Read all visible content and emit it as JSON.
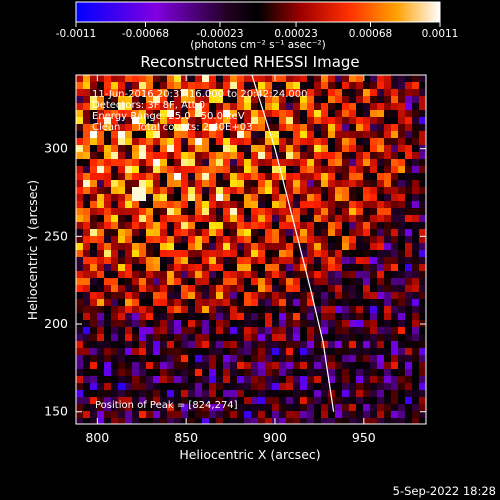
{
  "chart_data": {
    "type": "heatmap",
    "title": "Reconstructed RHESSI Image",
    "xlabel": "Heliocentric X (arcsec)",
    "ylabel": "Heliocentric Y (arcsec)",
    "xlim": [
      788,
      985
    ],
    "ylim": [
      143,
      342
    ],
    "xticks": [
      800,
      850,
      900,
      950
    ],
    "yticks": [
      150,
      200,
      250,
      300
    ],
    "colorbar": {
      "min": -0.0011,
      "max": 0.0011,
      "ticks": [
        -0.0011,
        -0.00068,
        -0.00023,
        0.00023,
        0.00068,
        0.0011
      ],
      "tick_labels": [
        "-0.0011",
        "-0.00068",
        "-0.00023",
        "0.00023",
        "0.00068",
        "0.0011"
      ],
      "unit_label": "(photons cm⁻² s⁻¹ asec⁻²)",
      "colormap": [
        "#0000ff",
        "#7a00e6",
        "#2a0030",
        "#000000",
        "#8a0000",
        "#ff2000",
        "#ff8000",
        "#ffe000",
        "#ffffff"
      ]
    },
    "peak": {
      "x": 824,
      "y": 274
    },
    "limb_curve": [
      [
        887,
        342
      ],
      [
        900,
        300
      ],
      [
        910,
        260
      ],
      [
        920,
        220
      ],
      [
        927,
        190
      ],
      [
        933,
        150
      ]
    ],
    "grid": false
  },
  "annotations": {
    "line1": "11-Jun-2016 20:37:16.000 to 20:42:24.000",
    "line2": "Detectors: 3F 8F, Att 0",
    "line3": "Energy Range: 25.0 - 50.0 keV",
    "line4": "Clean     Total counts: 2.40E+03",
    "peak_label": "Position of Peak = [824,274]"
  },
  "footer": {
    "date": "5-Sep-2022 18:28"
  }
}
